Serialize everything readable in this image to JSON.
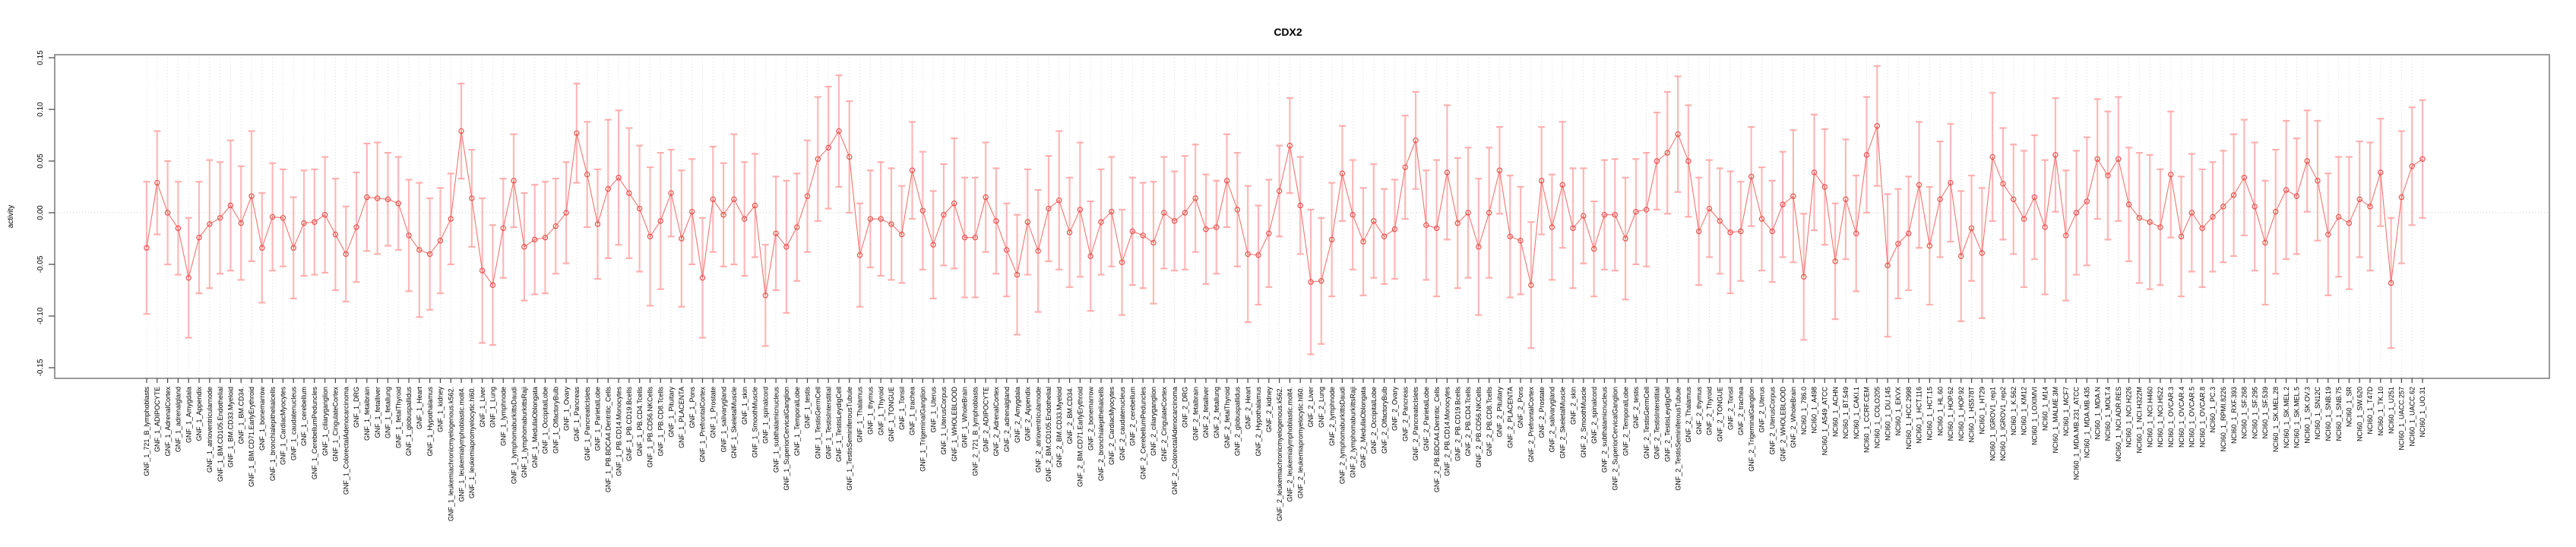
{
  "chart_data": {
    "type": "line",
    "title": "CDX2",
    "xlabel": "",
    "ylabel": "activity",
    "ylim": [
      -0.15,
      0.15
    ],
    "yticks": [
      0.15,
      0.1,
      0.05,
      0.0,
      -0.05,
      -0.1,
      -0.15
    ],
    "ytick_labels": [
      "0.15",
      "0.10",
      "0.05",
      "0.00",
      "-0.05",
      "-0.10",
      "-0.15"
    ],
    "legend": "none",
    "grid": "vertical dotted gridline per category; dotted horizontal line at y=0",
    "marker": "open-circle with symmetric error bars",
    "colors": {
      "point": "#e8504a",
      "line": "#ef6661",
      "bar": "#ffa8a8",
      "grid": "#dcdcdc",
      "zero_line": "#c8c8c8",
      "box": "#808080",
      "text": "#000000"
    },
    "categories": [
      "GNF_1_721_B_lymphoblasts",
      "GNF_1_ADIPOCYTE",
      "GNF_1_AdrenalCortex",
      "GNF_1_adrenalgland",
      "GNF_1_Amygdala",
      "GNF_1_Appendix",
      "GNF_1_atrioventricularnode",
      "GNF_1_BM.CD105.Endothelial",
      "GNF_1_BM.CD33.Myeloid",
      "GNF_1_BM.CD34.",
      "GNF_1_BM.CD71.EarlyErythroid",
      "GNF_1_bonemarrow",
      "GNF_1_bronchialepithelialcells",
      "GNF_1_CardiacMyocytes",
      "GNF_1_caudatenucleus",
      "GNF_1_cerebellum",
      "GNF_1_CerebellumPeduncles",
      "GNF_1_ciliaryganglion",
      "GNF_1_CingulateCortex",
      "GNF_1_ColorectalAdenocarcinoma",
      "GNF_1_DRG",
      "GNF_1_fetalbrain",
      "GNF_1_fetalliver",
      "GNF_1_fetallung",
      "GNF_1_fetalThyroid",
      "GNF_1_globuspallidus",
      "GNF_1_Heart",
      "GNF_1_Hypothalamus",
      "GNF_1_kidney",
      "GNF_1_leukemiachronicmyelogenous.k562.",
      "GNF_1_leukemialymphoblastic.molt4.",
      "GNF_1_leukemiapromyelocytic.hl60.",
      "GNF_1_Liver",
      "GNF_1_Lung",
      "GNF_1_lymphnode",
      "GNF_1_lymphomaburkittsDaudi",
      "GNF_1_lymphomaburkittsRaji",
      "GNF_1_MedullaOblongata",
      "GNF_1_OccipitalLobe",
      "GNF_1_OlfactoryBulb",
      "GNF_1_Ovary",
      "GNF_1_Pancreas",
      "GNF_1_PancreaticIslets",
      "GNF_1_ParietalLobe",
      "GNF_1_PB.BDCA4.Dentritic_Cells",
      "GNF_1_PB.CD14.Monocytes",
      "GNF_1_PB.CD19.Bcells",
      "GNF_1_PB.CD4.Tcells",
      "GNF_1_PB.CD56.NKCells",
      "GNF_1_PB.CD8.Tcells",
      "GNF_1_Pituitary",
      "GNF_1_PLACENTA",
      "GNF_1_Pons",
      "GNF_1_PrefrontalCortex",
      "GNF_1_Prostate",
      "GNF_1_salivarygland",
      "GNF_1_SkeletalMuscle",
      "GNF_1_skin",
      "GNF_1_SmoothMuscle",
      "GNF_1_spinalcord",
      "GNF_1_subthalamicnucleus",
      "GNF_1_SuperiorCervicalGanglion",
      "GNF_1_TemporalLobe",
      "GNF_1_testis",
      "GNF_1_TestisGermCell",
      "GNF_1_TestisInterstitial",
      "GNF_1_TestisLeydigCell",
      "GNF_1_TestisSeminiferousTubule",
      "GNF_1_Thalamus",
      "GNF_1_thymus",
      "GNF_1_Thyroid",
      "GNF_1_TONGUE",
      "GNF_1_Tonsil",
      "GNF_1_trachea",
      "GNF_1_TrigeminalGanglion",
      "GNF_1_Uterus",
      "GNF_1_UterusCorpus",
      "GNF_1_WHOLEBLOOD",
      "GNF_1_WholeBrain",
      "GNF_2_721_B_lymphoblasts",
      "GNF_2_ADIPOCYTE",
      "GNF_2_AdrenalCortex",
      "GNF_2_adrenalgland",
      "GNF_2_Amygdala",
      "GNF_2_Appendix",
      "GNF_2_atrioventricularnode",
      "GNF_2_BM.CD105.Endothelial",
      "GNF_2_BM.CD33.Myeloid",
      "GNF_2_BM.CD34.",
      "GNF_2_BM.CD71.EarlyErythroid",
      "GNF_2_bonemarrow",
      "GNF_2_bronchialepithelialcells",
      "GNF_2_CardiacMyocytes",
      "GNF_2_caudatenucleus",
      "GNF_2_cerebellum",
      "GNF_2_CerebellumPeduncles",
      "GNF_2_ciliaryganglion",
      "GNF_2_CingulateCortex",
      "GNF_2_ColorectalAdenocarcinoma",
      "GNF_2_DRG",
      "GNF_2_fetalbrain",
      "GNF_2_fetalliver",
      "GNF_2_fetallung",
      "GNF_2_fetalThyroid",
      "GNF_2_globuspallidus",
      "GNF_2_Heart",
      "GNF_2_Hypothalamus",
      "GNF_2_kidney",
      "GNF_2_leukemiachronicmyelogenous.k562.",
      "GNF_2_leukemialymphoblastic.molt4.",
      "GNF_2_leukemiapromyelocytic.hl60.",
      "GNF_2_Liver",
      "GNF_2_Lung",
      "GNF_2_lymphnode",
      "GNF_2_lymphomaburkittsDaudi",
      "GNF_2_lymphomaburkittsRaji",
      "GNF_2_MedullaOblongata",
      "GNF_2_OccipitalLobe",
      "GNF_2_OlfactoryBulb",
      "GNF_2_Ovary",
      "GNF_2_Pancreas",
      "GNF_2_PancreaticIslets",
      "GNF_2_ParietalLobe",
      "GNF_2_PB.BDCA4.Dentritic_Cells",
      "GNF_2_PB.CD14.Monocytes",
      "GNF_2_PB.CD19.Bcells",
      "GNF_2_PB.CD4.Tcells",
      "GNF_2_PB.CD56.NKCells",
      "GNF_2_PB.CD8.Tcells",
      "GNF_2_Pituitary",
      "GNF_2_PLACENTA",
      "GNF_2_Pons",
      "GNF_2_PrefrontalCortex",
      "GNF_2_Prostate",
      "GNF_2_salivarygland",
      "GNF_2_SkeletalMuscle",
      "GNF_2_skin",
      "GNF_2_SmoothMuscle",
      "GNF_2_spinalcord",
      "GNF_2_subthalamicnucleus",
      "GNF_2_SuperiorCervicalGanglion",
      "GNF_2_TemporalLobe",
      "GNF_2_testis",
      "GNF_2_TestisGermCell",
      "GNF_2_TestisInterstitial",
      "GNF_2_TestisLeydigCell",
      "GNF_2_TestisSeminiferousTubule",
      "GNF_2_Thalamus",
      "GNF_2_thymus",
      "GNF_2_Thyroid",
      "GNF_2_TONGUE",
      "GNF_2_Tonsil",
      "GNF_2_trachea",
      "GNF_2_TrigeminalGanglion",
      "GNF_2_Uterus",
      "GNF_2_UterusCorpus",
      "GNF_2_WHOLEBLOOD",
      "GNF_2_WholeBrain",
      "NCI60_1_786.0",
      "NCI60_1_A498",
      "NCI60_1_A549_ATCC",
      "NCI60_1_ACHN",
      "NCI60_1_BT.549",
      "NCI60_1_CAKI.1",
      "NCI60_1_CCRF.CEM",
      "NCI60_1_COLO205",
      "NCI60_1_DU.145",
      "NCI60_1_EKVX",
      "NCI60_1_HCC.2998",
      "NCI60_1_HCT.116",
      "NCI60_1_HCT.15",
      "NCI60_1_HL.60",
      "NCI60_1_HOP.62",
      "NCI60_1_HOP.92",
      "NCI60_1_HS578T",
      "NCI60_1_HT29",
      "NCI60_1_IGROV1_rep1",
      "NCI60_1_IGROV1_rep2",
      "NCI60_1_K.562",
      "NCI60_1_KM12",
      "NCI60_1_LOXIMVI",
      "NCI60_1_M14",
      "NCI60_1_MALME.3M",
      "NCI60_1_MCF7",
      "NCI60_1_MDA.MB.231_ATCC",
      "NCI60_1_MDA.MB.435",
      "NCI60_1_MDA.N",
      "NCI60_1_MOLT.4",
      "NCI60_1_NCI.ADR.RES",
      "NCI60_1_NCI.H226",
      "NCI60_1_NCI.H322M",
      "NCI60_1_NCI.H460",
      "NCI60_1_NCI.H522",
      "NCI60_1_OVCAR.3",
      "NCI60_1_OVCAR.4",
      "NCI60_1_OVCAR.5",
      "NCI60_1_OVCAR.8",
      "NCI60_1_PC.3",
      "NCI60_1_RPMI.8226",
      "NCI60_1_RXF.393",
      "NCI60_1_SF.268",
      "NCI60_1_SF.295",
      "NCI60_1_SF.539",
      "NCI60_1_SK.MEL.28",
      "NCI60_1_SK.MEL.2",
      "NCI60_1_SK.MEL.5",
      "NCI60_1_SK.OV.3",
      "NCI60_1_SN12C",
      "NCI60_1_SNB.19",
      "NCI60_1_SNB.75",
      "NCI60_1_SR",
      "NCI60_1_SW.620",
      "NCI60_1_T47D",
      "NCI60_1_TK.10",
      "NCI60_1_U251",
      "NCI60_1_UACC.257",
      "NCI60_1_UACC.62",
      "NCI60_1_UO.31"
    ],
    "series": [
      {
        "name": "activity",
        "values": [
          -0.034,
          0.029,
          0.0,
          -0.015,
          -0.063,
          -0.024,
          -0.011,
          -0.005,
          0.007,
          -0.01,
          0.016,
          -0.034,
          -0.004,
          -0.005,
          -0.034,
          -0.01,
          -0.009,
          -0.002,
          -0.021,
          -0.04,
          -0.014,
          0.015,
          0.014,
          0.013,
          0.009,
          -0.022,
          -0.036,
          -0.04,
          -0.027,
          -0.006,
          0.079,
          0.014,
          -0.056,
          -0.07,
          -0.015,
          0.031,
          -0.033,
          -0.026,
          -0.024,
          -0.013,
          0.0,
          0.077,
          0.037,
          -0.011,
          0.023,
          0.034,
          0.019,
          0.004,
          -0.023,
          -0.008,
          0.019,
          -0.025,
          0.001,
          -0.063,
          0.013,
          -0.002,
          0.013,
          -0.006,
          0.007,
          -0.08,
          -0.02,
          -0.033,
          -0.014,
          0.016,
          0.052,
          0.063,
          0.079,
          0.054,
          -0.041,
          -0.006,
          -0.006,
          -0.011,
          -0.021,
          0.041,
          0.002,
          -0.031,
          -0.002,
          0.009,
          -0.024,
          -0.024,
          0.015,
          -0.008,
          -0.036,
          -0.06,
          -0.009,
          -0.037,
          0.004,
          0.012,
          -0.019,
          0.003,
          -0.042,
          -0.009,
          0.001,
          -0.048,
          -0.018,
          -0.022,
          -0.029,
          0.0,
          -0.008,
          0.0,
          0.014,
          -0.016,
          -0.014,
          0.031,
          0.003,
          -0.04,
          -0.041,
          -0.02,
          0.021,
          0.065,
          0.007,
          -0.067,
          -0.066,
          -0.026,
          0.038,
          -0.002,
          -0.028,
          -0.008,
          -0.023,
          -0.016,
          0.044,
          0.07,
          -0.012,
          -0.015,
          0.039,
          -0.01,
          0.0,
          -0.033,
          0.0,
          0.041,
          -0.023,
          -0.027,
          -0.07,
          0.031,
          -0.014,
          0.027,
          -0.015,
          -0.003,
          -0.035,
          -0.002,
          -0.002,
          -0.025,
          0.001,
          0.003,
          0.05,
          0.058,
          0.076,
          0.05,
          -0.018,
          0.004,
          -0.008,
          -0.019,
          -0.018,
          0.035,
          -0.006,
          -0.018,
          0.008,
          0.016,
          -0.062,
          0.039,
          0.025,
          -0.047,
          0.013,
          -0.02,
          0.056,
          0.084,
          -0.051,
          -0.03,
          -0.02,
          0.027,
          -0.032,
          0.013,
          0.029,
          -0.042,
          -0.015,
          -0.039,
          0.054,
          0.028,
          0.013,
          -0.006,
          0.015,
          -0.014,
          0.056,
          -0.022,
          0.0,
          0.011,
          0.052,
          0.036,
          0.052,
          0.008,
          -0.005,
          -0.009,
          -0.014,
          0.037,
          -0.023,
          0.0,
          -0.015,
          -0.004,
          0.006,
          0.017,
          0.034,
          0.006,
          -0.029,
          0.001,
          0.022,
          0.016,
          0.05,
          0.031,
          -0.021,
          -0.004,
          -0.01,
          0.013,
          0.006,
          0.039,
          -0.068,
          0.015,
          0.045,
          0.052
        ],
        "stderr": [
          0.064,
          0.05,
          0.05,
          0.045,
          0.058,
          0.054,
          0.062,
          0.054,
          0.063,
          0.055,
          0.063,
          0.053,
          0.052,
          0.047,
          0.049,
          0.051,
          0.051,
          0.056,
          0.054,
          0.046,
          0.053,
          0.052,
          0.054,
          0.045,
          0.045,
          0.054,
          0.065,
          0.054,
          0.051,
          0.044,
          0.046,
          0.047,
          0.07,
          0.058,
          0.048,
          0.045,
          0.052,
          0.053,
          0.054,
          0.046,
          0.049,
          0.048,
          0.051,
          0.053,
          0.067,
          0.065,
          0.063,
          0.061,
          0.067,
          0.066,
          0.042,
          0.066,
          0.051,
          0.058,
          0.051,
          0.05,
          0.063,
          0.055,
          0.05,
          0.049,
          0.055,
          0.064,
          0.052,
          0.054,
          0.06,
          0.059,
          0.054,
          0.054,
          0.05,
          0.047,
          0.055,
          0.054,
          0.047,
          0.047,
          0.057,
          0.052,
          0.049,
          0.063,
          0.058,
          0.058,
          0.053,
          0.051,
          0.045,
          0.058,
          0.051,
          0.059,
          0.051,
          0.067,
          0.053,
          0.065,
          0.053,
          0.051,
          0.053,
          0.051,
          0.052,
          0.051,
          0.059,
          0.054,
          0.048,
          0.055,
          0.052,
          0.053,
          0.045,
          0.045,
          0.055,
          0.066,
          0.048,
          0.052,
          0.044,
          0.046,
          0.047,
          0.07,
          0.061,
          0.055,
          0.046,
          0.053,
          0.052,
          0.055,
          0.046,
          0.048,
          0.05,
          0.047,
          0.053,
          0.066,
          0.065,
          0.063,
          0.063,
          0.066,
          0.063,
          0.042,
          0.059,
          0.052,
          0.061,
          0.052,
          0.051,
          0.061,
          0.058,
          0.046,
          0.046,
          0.053,
          0.054,
          0.059,
          0.051,
          0.055,
          0.047,
          0.059,
          0.056,
          0.054,
          0.052,
          0.047,
          0.051,
          0.059,
          0.048,
          0.048,
          0.05,
          0.049,
          0.051,
          0.064,
          0.061,
          0.056,
          0.056,
          0.056,
          0.058,
          0.056,
          0.056,
          0.058,
          0.069,
          0.053,
          0.055,
          0.061,
          0.057,
          0.056,
          0.057,
          0.063,
          0.051,
          0.063,
          0.062,
          0.054,
          0.053,
          0.066,
          0.06,
          0.065,
          0.055,
          0.063,
          0.06,
          0.062,
          0.058,
          0.062,
          0.06,
          0.055,
          0.063,
          0.065,
          0.056,
          0.061,
          0.058,
          0.057,
          0.057,
          0.053,
          0.054,
          0.059,
          0.056,
          0.062,
          0.06,
          0.06,
          0.067,
          0.056,
          0.049,
          0.058,
          0.059,
          0.058,
          0.064,
          0.056,
          0.062,
          0.052,
          0.063,
          0.064,
          0.057,
          0.057
        ]
      }
    ]
  }
}
